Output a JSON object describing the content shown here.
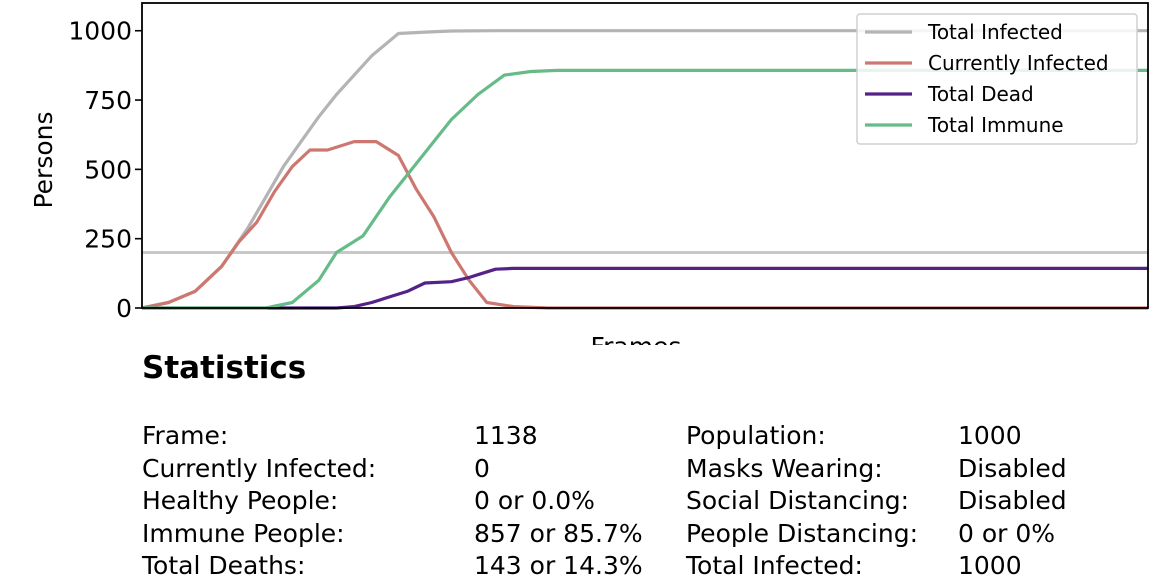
{
  "chart_data": {
    "type": "line",
    "xlabel": "Frames",
    "ylabel": "Persons",
    "xlim": [
      0,
      1138
    ],
    "ylim": [
      0,
      1100
    ],
    "yticks": [
      0,
      250,
      500,
      750,
      1000
    ],
    "xticks_shown": false,
    "grid": false,
    "legend_placement": "top-right",
    "reference_line": {
      "y": 200,
      "color": "#c8c8c8"
    },
    "series": [
      {
        "name": "Total Infected",
        "color": "#b4b4b4",
        "points": [
          [
            0,
            0
          ],
          [
            30,
            20
          ],
          [
            60,
            60
          ],
          [
            90,
            150
          ],
          [
            120,
            290
          ],
          [
            140,
            400
          ],
          [
            160,
            510
          ],
          [
            180,
            600
          ],
          [
            200,
            690
          ],
          [
            220,
            770
          ],
          [
            240,
            840
          ],
          [
            260,
            910
          ],
          [
            290,
            990
          ],
          [
            320,
            995
          ],
          [
            350,
            999
          ],
          [
            400,
            1000
          ],
          [
            1138,
            1000
          ]
        ]
      },
      {
        "name": "Currently Infected",
        "color": "#cd7770",
        "points": [
          [
            0,
            0
          ],
          [
            30,
            20
          ],
          [
            60,
            60
          ],
          [
            90,
            150
          ],
          [
            110,
            240
          ],
          [
            130,
            310
          ],
          [
            150,
            420
          ],
          [
            170,
            510
          ],
          [
            190,
            570
          ],
          [
            210,
            570
          ],
          [
            240,
            600
          ],
          [
            265,
            600
          ],
          [
            290,
            550
          ],
          [
            310,
            430
          ],
          [
            330,
            330
          ],
          [
            350,
            200
          ],
          [
            370,
            100
          ],
          [
            390,
            20
          ],
          [
            420,
            5
          ],
          [
            460,
            0
          ],
          [
            1138,
            0
          ]
        ]
      },
      {
        "name": "Total Dead",
        "color": "#552288",
        "points": [
          [
            0,
            0
          ],
          [
            220,
            0
          ],
          [
            240,
            5
          ],
          [
            260,
            20
          ],
          [
            280,
            40
          ],
          [
            300,
            60
          ],
          [
            320,
            90
          ],
          [
            350,
            95
          ],
          [
            370,
            110
          ],
          [
            380,
            120
          ],
          [
            400,
            140
          ],
          [
            420,
            143
          ],
          [
            1138,
            143
          ]
        ]
      },
      {
        "name": "Total Immune",
        "color": "#66bb88",
        "points": [
          [
            0,
            0
          ],
          [
            140,
            0
          ],
          [
            170,
            20
          ],
          [
            200,
            100
          ],
          [
            220,
            200
          ],
          [
            250,
            260
          ],
          [
            280,
            400
          ],
          [
            320,
            560
          ],
          [
            350,
            680
          ],
          [
            380,
            770
          ],
          [
            410,
            840
          ],
          [
            440,
            853
          ],
          [
            470,
            857
          ],
          [
            1138,
            857
          ]
        ]
      }
    ]
  },
  "statistics": {
    "title": "Statistics",
    "rows": [
      {
        "label": "Frame:",
        "value": "1138",
        "label2": "Population:",
        "value2": "1000"
      },
      {
        "label": "Currently Infected:",
        "value": "0",
        "label2": "Masks Wearing:",
        "value2": "Disabled"
      },
      {
        "label": "Healthy People:",
        "value": "0 or 0.0%",
        "label2": "Social Distancing:",
        "value2": "Disabled"
      },
      {
        "label": "Immune People:",
        "value": "857 or 85.7%",
        "label2": "People Distancing:",
        "value2": "0 or 0%"
      },
      {
        "label": "Total Deaths:",
        "value": "143 or 14.3%",
        "label2": "Total Infected:",
        "value2": "1000"
      }
    ]
  }
}
